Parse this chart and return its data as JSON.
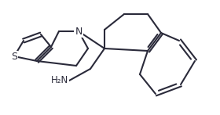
{
  "background_color": "#ffffff",
  "line_color": "#2a2a3a",
  "line_width": 1.5,
  "label_S": "S",
  "label_N": "N",
  "label_NH2": "H₂N",
  "font_size_labels": 8.5
}
